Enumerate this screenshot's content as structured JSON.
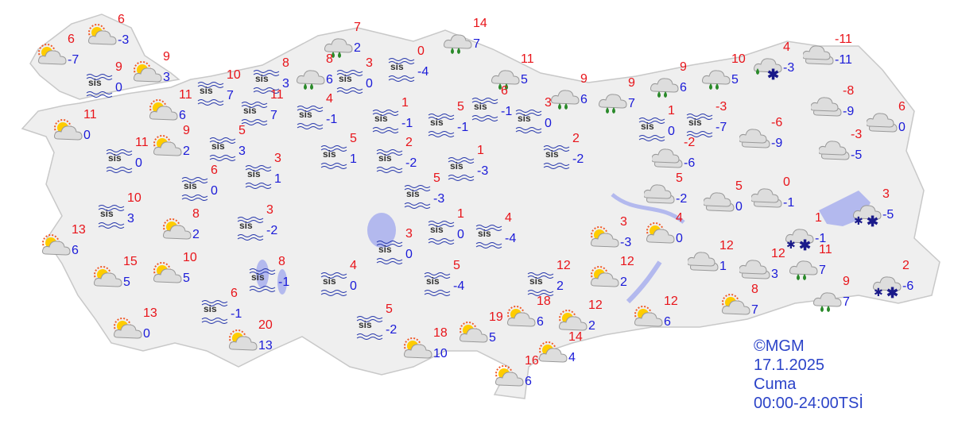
{
  "map": {
    "credit": "©MGM",
    "date": "17.1.2025",
    "day": "Cuma",
    "period": "00:00-24:00TSİ",
    "sis_label": "sis",
    "colors": {
      "land": "#efefef",
      "border": "#c8c8c8",
      "water": "#b3b9ee",
      "high": "#e8141a",
      "low": "#1a1ad8",
      "text": "#2b43c8"
    }
  },
  "stations": [
    {
      "type": "sun-cloud",
      "high": "6",
      "low": "-7"
    },
    {
      "type": "sun-cloud",
      "high": "6",
      "low": "-3"
    },
    {
      "type": "sun-cloud",
      "high": "9",
      "low": "3"
    },
    {
      "type": "fog",
      "high": "9",
      "low": "0"
    },
    {
      "type": "sun-cloud",
      "high": "11",
      "low": "6"
    },
    {
      "type": "sun-cloud",
      "high": "11",
      "low": "0"
    },
    {
      "type": "fog",
      "high": "11",
      "low": "0"
    },
    {
      "type": "sun-cloud",
      "high": "9",
      "low": "2"
    },
    {
      "type": "fog",
      "high": "10",
      "low": "7"
    },
    {
      "type": "fog",
      "high": "8",
      "low": "3"
    },
    {
      "type": "fog",
      "high": "11",
      "low": "7"
    },
    {
      "type": "fog",
      "high": "5",
      "low": "3"
    },
    {
      "type": "fog",
      "high": "6",
      "low": "0"
    },
    {
      "type": "fog",
      "high": "3",
      "low": "1"
    },
    {
      "type": "fog",
      "high": "10",
      "low": "3"
    },
    {
      "type": "sun-cloud",
      "high": "8",
      "low": "2"
    },
    {
      "type": "fog",
      "high": "3",
      "low": "-2"
    },
    {
      "type": "sun-cloud",
      "high": "13",
      "low": "6"
    },
    {
      "type": "sun-cloud",
      "high": "15",
      "low": "5"
    },
    {
      "type": "sun-cloud",
      "high": "10",
      "low": "5"
    },
    {
      "type": "fog",
      "high": "8",
      "low": "-1"
    },
    {
      "type": "fog",
      "high": "6",
      "low": "-1"
    },
    {
      "type": "sun-cloud",
      "high": "13",
      "low": "0"
    },
    {
      "type": "sun-cloud",
      "high": "20",
      "low": "13"
    },
    {
      "type": "rain",
      "high": "7",
      "low": "2"
    },
    {
      "type": "rain",
      "high": "8",
      "low": "6"
    },
    {
      "type": "fog",
      "high": "3",
      "low": "0"
    },
    {
      "type": "fog",
      "high": "4",
      "low": "-1"
    },
    {
      "type": "fog",
      "high": "0",
      "low": "-4"
    },
    {
      "type": "fog",
      "high": "1",
      "low": "-1"
    },
    {
      "type": "fog",
      "high": "5",
      "low": "1"
    },
    {
      "type": "fog",
      "high": "2",
      "low": "-2"
    },
    {
      "type": "fog",
      "high": "5",
      "low": "-1"
    },
    {
      "type": "fog",
      "high": "1",
      "low": "-3"
    },
    {
      "type": "fog",
      "high": "5",
      "low": "-3"
    },
    {
      "type": "fog",
      "high": "1",
      "low": "0"
    },
    {
      "type": "fog",
      "high": "3",
      "low": "0"
    },
    {
      "type": "fog",
      "high": "4",
      "low": "-4"
    },
    {
      "type": "fog",
      "high": "4",
      "low": "0"
    },
    {
      "type": "fog",
      "high": "5",
      "low": "-2"
    },
    {
      "type": "fog",
      "high": "5",
      "low": "-4"
    },
    {
      "type": "rain",
      "high": "14",
      "low": "7"
    },
    {
      "type": "rain",
      "high": "11",
      "low": "5"
    },
    {
      "type": "fog",
      "high": "6",
      "low": "-1"
    },
    {
      "type": "fog",
      "high": "3",
      "low": "0"
    },
    {
      "type": "fog",
      "high": "2",
      "low": "-2"
    },
    {
      "type": "rain",
      "high": "9",
      "low": "6"
    },
    {
      "type": "rain",
      "high": "9",
      "low": "7"
    },
    {
      "type": "rain",
      "high": "9",
      "low": "6"
    },
    {
      "type": "rain",
      "high": "10",
      "low": "5"
    },
    {
      "type": "rain-snow",
      "high": "4",
      "low": "-3"
    },
    {
      "type": "cloud",
      "high": "-11",
      "low": "-11"
    },
    {
      "type": "fog",
      "high": "1",
      "low": "0"
    },
    {
      "type": "fog",
      "high": "-3",
      "low": "-7"
    },
    {
      "type": "cloud",
      "high": "-2",
      "low": "-6"
    },
    {
      "type": "cloud",
      "high": "-6",
      "low": "-9"
    },
    {
      "type": "cloud",
      "high": "-8",
      "low": "-9"
    },
    {
      "type": "cloud",
      "high": "6",
      "low": "0"
    },
    {
      "type": "cloud",
      "high": "-3",
      "low": "-5"
    },
    {
      "type": "cloud",
      "high": "5",
      "low": "-2"
    },
    {
      "type": "cloud",
      "high": "5",
      "low": "0"
    },
    {
      "type": "cloud",
      "high": "0",
      "low": "-1"
    },
    {
      "type": "snow",
      "high": "3",
      "low": "-5"
    },
    {
      "type": "snow",
      "high": "1",
      "low": "-1"
    },
    {
      "type": "sun-cloud",
      "high": "3",
      "low": "-3"
    },
    {
      "type": "sun-cloud",
      "high": "4",
      "low": "0"
    },
    {
      "type": "cloud",
      "high": "12",
      "low": "1"
    },
    {
      "type": "cloud",
      "high": "12",
      "low": "3"
    },
    {
      "type": "rain",
      "high": "11",
      "low": "7"
    },
    {
      "type": "fog",
      "high": "12",
      "low": "2"
    },
    {
      "type": "sun-cloud",
      "high": "12",
      "low": "2"
    },
    {
      "type": "sun-cloud",
      "high": "18",
      "low": "6"
    },
    {
      "type": "sun-cloud",
      "high": "12",
      "low": "2"
    },
    {
      "type": "sun-cloud",
      "high": "12",
      "low": "6"
    },
    {
      "type": "sun-cloud",
      "high": "8",
      "low": "7"
    },
    {
      "type": "rain",
      "high": "9",
      "low": "7"
    },
    {
      "type": "snow",
      "high": "2",
      "low": "-6"
    },
    {
      "type": "sun-cloud",
      "high": "19",
      "low": "5"
    },
    {
      "type": "sun-cloud",
      "high": "18",
      "low": "10"
    },
    {
      "type": "sun-cloud",
      "high": "14",
      "low": "4"
    },
    {
      "type": "sun-cloud",
      "high": "16",
      "low": "6"
    }
  ]
}
